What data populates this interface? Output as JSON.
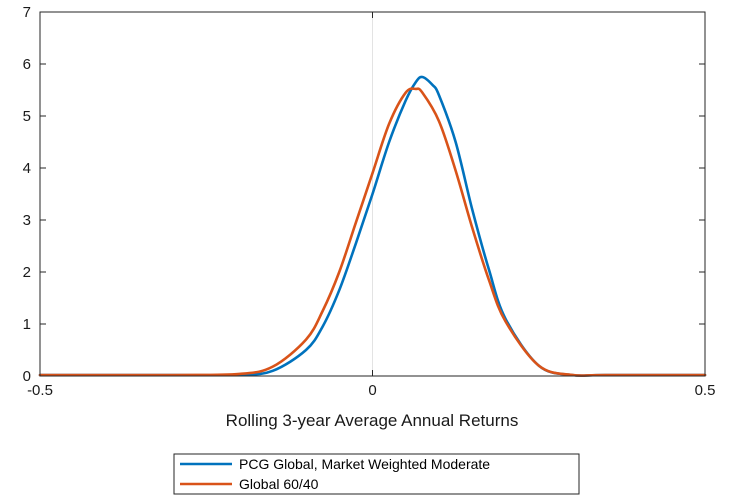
{
  "chart_data": {
    "type": "line",
    "xlabel": "Rolling 3-year Average Annual Returns",
    "ylabel": "",
    "xlim": [
      -0.5,
      0.5
    ],
    "ylim": [
      0,
      7
    ],
    "xticks": [
      -0.5,
      0,
      0.5
    ],
    "xtick_labels": [
      "-0.5",
      "0",
      "0.5"
    ],
    "yticks": [
      0,
      1,
      2,
      3,
      4,
      5,
      6,
      7
    ],
    "ytick_labels": [
      "0",
      "1",
      "2",
      "3",
      "4",
      "5",
      "6",
      "7"
    ],
    "grid": "zero-lines only",
    "legend_position": "bottom-center",
    "series": [
      {
        "name": "PCG Global, Market Weighted Moderate",
        "color": "#0072BD",
        "x": [
          -0.5,
          -0.3,
          -0.2,
          -0.15,
          -0.1,
          -0.075,
          -0.05,
          -0.025,
          0,
          0.025,
          0.05,
          0.065,
          0.075,
          0.09,
          0.1,
          0.125,
          0.15,
          0.175,
          0.2,
          0.25,
          0.3,
          0.35,
          0.5
        ],
        "y": [
          0,
          0.0,
          0.02,
          0.1,
          0.5,
          0.95,
          1.65,
          2.55,
          3.5,
          4.5,
          5.3,
          5.65,
          5.75,
          5.6,
          5.4,
          4.5,
          3.2,
          2.05,
          1.1,
          0.2,
          0.01,
          0,
          0
        ]
      },
      {
        "name": "Global 60/40",
        "color": "#D95319",
        "x": [
          -0.5,
          -0.3,
          -0.2,
          -0.15,
          -0.1,
          -0.075,
          -0.05,
          -0.025,
          0,
          0.025,
          0.05,
          0.065,
          0.075,
          0.1,
          0.125,
          0.15,
          0.175,
          0.2,
          0.25,
          0.3,
          0.35,
          0.5
        ],
        "y": [
          0,
          0.0,
          0.04,
          0.18,
          0.7,
          1.25,
          2.0,
          2.95,
          3.9,
          4.85,
          5.45,
          5.52,
          5.45,
          4.9,
          3.95,
          2.85,
          1.85,
          1.05,
          0.2,
          0.02,
          0,
          0
        ]
      }
    ]
  }
}
